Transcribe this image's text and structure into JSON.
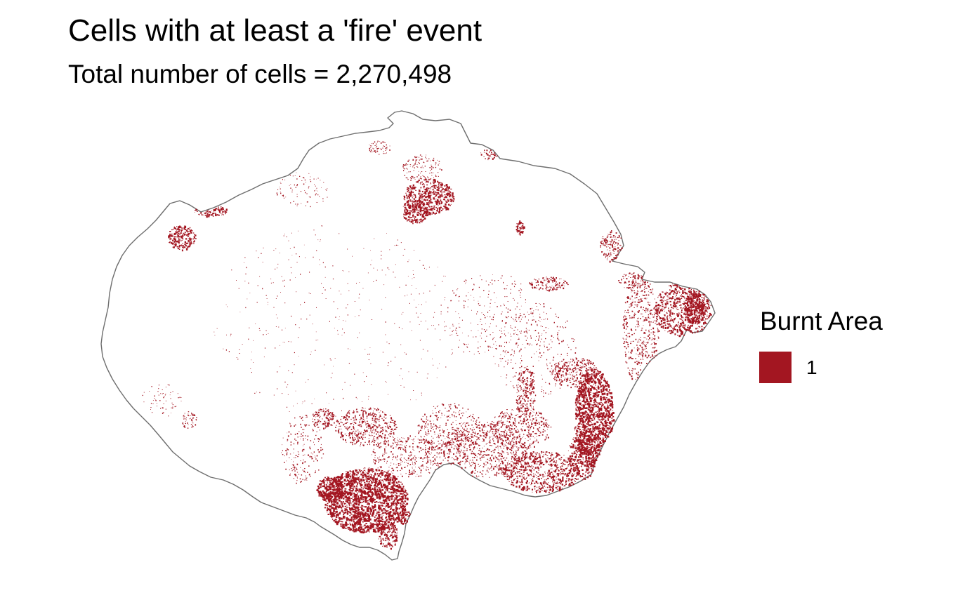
{
  "title": "Cells with at least a 'fire' event",
  "subtitle": "Total number of cells = 2,270,498",
  "legend": {
    "title": "Burnt Area",
    "items": [
      {
        "label": "1",
        "color": "#A31621"
      }
    ]
  },
  "colors": {
    "burnt": "#A31621",
    "outline": "#6e6e6e",
    "background": "#ffffff"
  }
}
